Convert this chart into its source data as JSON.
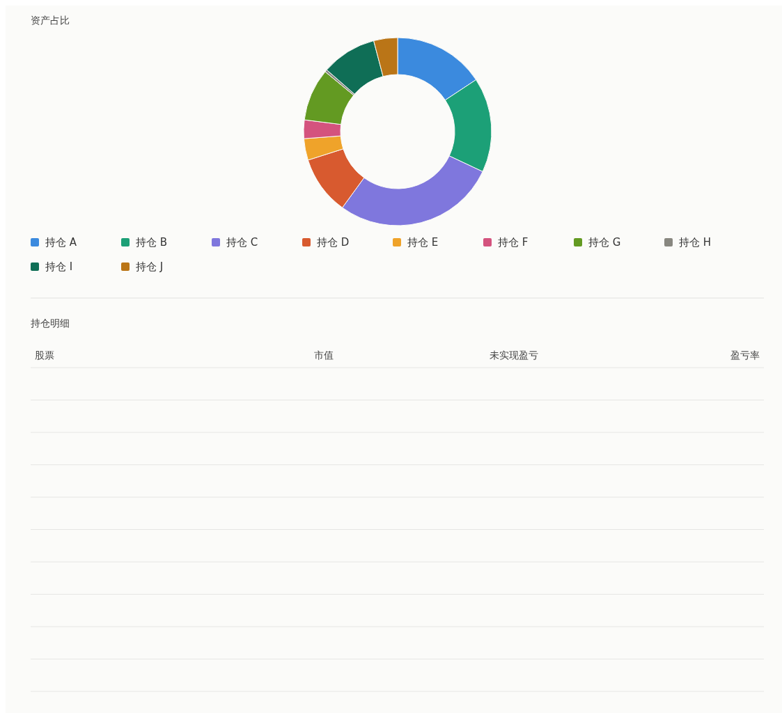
{
  "chart_data": [
    {
      "type": "donut",
      "title": "资产占比",
      "categories": [
        "持仓 A",
        "持仓 B",
        "持仓 C",
        "持仓 D",
        "持仓 E",
        "持仓 F",
        "持仓 G",
        "持仓 H",
        "持仓 I",
        "持仓 J"
      ],
      "values": [
        15.7,
        16.3,
        28.0,
        10.1,
        3.7,
        3.2,
        9.0,
        0.4,
        9.5,
        4.1
      ],
      "colors": [
        "#3b8ade",
        "#1ca077",
        "#7f77dd",
        "#d85a2f",
        "#efa32a",
        "#d4537e",
        "#639a22",
        "#888780",
        "#0f6e56",
        "#ba7517"
      ],
      "legend": "bottom"
    },
    {
      "type": "other",
      "title": "持仓明细",
      "annotations": [
        "股票",
        "市值",
        "未实现盈亏",
        "盈亏率"
      ]
    }
  ]
}
